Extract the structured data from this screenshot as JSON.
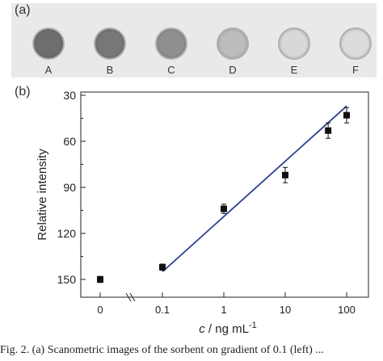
{
  "panel_a": {
    "label": "(a)",
    "wells": [
      {
        "label": "A",
        "color": "#6e6e6e",
        "ring": "#9a9a9a"
      },
      {
        "label": "B",
        "color": "#777777",
        "ring": "#9f9f9f"
      },
      {
        "label": "C",
        "color": "#8f8f8f",
        "ring": "#a9a9a9"
      },
      {
        "label": "D",
        "color": "#bcbcbc",
        "ring": "#a3a3a3"
      },
      {
        "label": "E",
        "color": "#d8d8d8",
        "ring": "#a8a8a8"
      },
      {
        "label": "F",
        "color": "#dcdcdc",
        "ring": "#9e9e9e"
      }
    ]
  },
  "chart_data": {
    "type": "scatter",
    "panel_label": "(b)",
    "xlabel": {
      "italic": "c",
      "rest": " / ng mL",
      "sup": "-1"
    },
    "ylabel": "Relative intensity",
    "x_ticks": [
      "0",
      "0.1",
      "1",
      "10",
      "100"
    ],
    "y_ticks": [
      30,
      60,
      90,
      120,
      150
    ],
    "ylim": [
      150,
      30
    ],
    "y_inverted": true,
    "points": [
      {
        "x": "0",
        "y": 150,
        "err": 2
      },
      {
        "x": "0.1",
        "y": 142,
        "err": 2
      },
      {
        "x": "1",
        "y": 104,
        "err": 3
      },
      {
        "x": "10",
        "y": 82,
        "err": 5
      },
      {
        "x": "50",
        "y": 53,
        "err": 5
      },
      {
        "x": "100",
        "y": 43,
        "err": 5
      }
    ],
    "fit_line": {
      "x_start": "0.1",
      "y_start": 145,
      "x_end": "100",
      "y_end": 37,
      "color": "#2b3f8f"
    },
    "colors": {
      "marker": "#111111",
      "axis": "#222222"
    }
  },
  "caption": {
    "text": "Fig. 2. (a) Scanometric images of the sorbent on gradient of 0.1 (left) ..."
  }
}
